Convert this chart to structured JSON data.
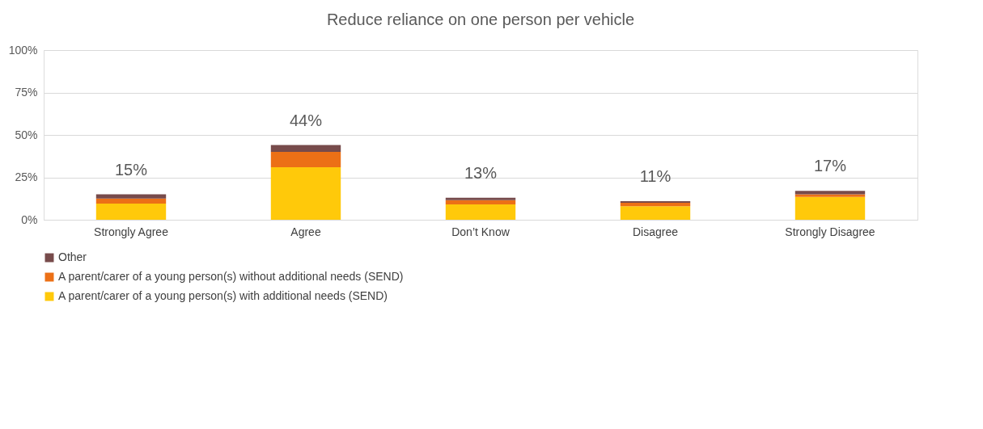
{
  "chart_data": {
    "type": "bar",
    "title": "Reduce reliance on one person per vehicle",
    "categories": [
      "Strongly Agree",
      "Agree",
      "Don’t Know",
      "Disagree",
      "Strongly Disagree"
    ],
    "series": [
      {
        "name": "A parent/carer of a young person(s) with additional needs (SEND)",
        "color": "#ffc90a",
        "values": [
          9.5,
          31,
          9,
          8,
          13.5
        ]
      },
      {
        "name": "A parent/carer of a young person(s) without additional needs (SEND)",
        "color": "#ec7016",
        "values": [
          3,
          9,
          2.5,
          2,
          1.5
        ]
      },
      {
        "name": "Other",
        "color": "#774b4b",
        "values": [
          2.5,
          4,
          1.5,
          1,
          2
        ]
      }
    ],
    "stacked": true,
    "totals": [
      "15%",
      "44%",
      "13%",
      "11%",
      "17%"
    ],
    "ylim": [
      0,
      100
    ],
    "yticks": [
      {
        "value": 0,
        "label": "0%"
      },
      {
        "value": 25,
        "label": "25%"
      },
      {
        "value": 50,
        "label": "50%"
      },
      {
        "value": 75,
        "label": "75%"
      },
      {
        "value": 100,
        "label": "100%"
      }
    ],
    "grid": "y",
    "legend": "bottom"
  }
}
